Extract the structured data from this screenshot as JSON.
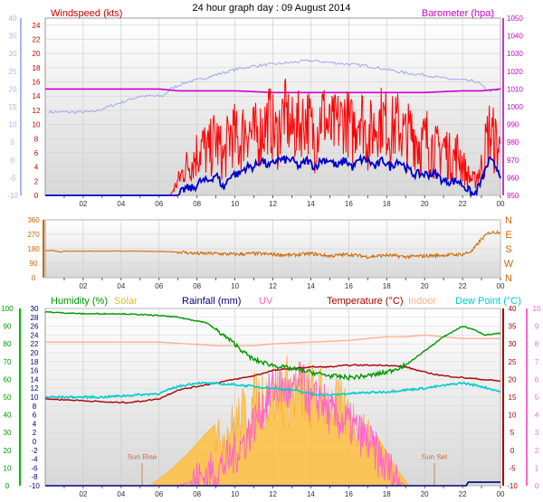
{
  "header": {
    "title": "24 hour graph day : 09 August 2014"
  },
  "colors": {
    "wind": "#ff0000",
    "gust_avg": "#0000cc",
    "windspeed_label": "#cc0000",
    "barometer": "#cc00cc",
    "barometer_axis": "#cc33cc",
    "left_axis_top": "#aab4ee",
    "direction": "#cc6600",
    "humidity": "#009900",
    "humidity_axis": "#00bb00",
    "solar": "#ffc040",
    "rainfall": "#000080",
    "uv": "#ff66cc",
    "temperature": "#aa0000",
    "indoor": "#ffb090",
    "dewpoint": "#00cccc",
    "panel_bg_top": "#ffffff",
    "panel_bg_bottom": "#d8d8d8"
  },
  "chart_data": [
    {
      "type": "line",
      "panel": "wind_barometer",
      "x_ticks": [
        "02",
        "04",
        "06",
        "08",
        "10",
        "12",
        "14",
        "16",
        "18",
        "20",
        "22",
        "00"
      ],
      "left_axis": {
        "label": "Windspeed (kts)",
        "ticks": [
          0,
          2,
          4,
          6,
          8,
          10,
          12,
          14,
          16,
          18,
          20,
          22,
          24
        ],
        "ylim": [
          0,
          25
        ]
      },
      "left_axis_outer": {
        "ticks": [
          -10,
          -5,
          0,
          5,
          10,
          15,
          20,
          25,
          30,
          35,
          40
        ],
        "ylim": [
          -10,
          40
        ]
      },
      "right_axis": {
        "label": "Barometer (hpa)",
        "ticks": [
          950,
          960,
          970,
          980,
          990,
          1000,
          1010,
          1020,
          1030,
          1040,
          1050
        ],
        "ylim": [
          950,
          1050
        ]
      },
      "series": [
        {
          "key": "outer",
          "axis": "left_outer",
          "x": [
            0.2,
            2.5,
            5.0,
            6.2,
            6.6,
            7.0,
            7.5,
            8.0,
            9.0,
            10.0,
            11.0,
            12.0,
            13.0,
            14.0,
            15.0,
            16.0,
            17.0,
            18.0,
            19.0,
            20.0,
            21.0,
            22.0,
            22.8,
            23.2,
            23.5,
            23.9
          ],
          "values": [
            13.5,
            13.5,
            18.0,
            18.0,
            20.0,
            21.0,
            22.0,
            22.5,
            24.0,
            25.5,
            26.5,
            27.0,
            27.5,
            28.0,
            27.5,
            27.0,
            26.5,
            25.5,
            24.5,
            24.0,
            23.0,
            22.5,
            22.0,
            20.0,
            19.5,
            19.5
          ]
        },
        {
          "key": "barometer",
          "axis": "right",
          "x": [
            0,
            4,
            6,
            7,
            8,
            10,
            12,
            14,
            16,
            18,
            20,
            22,
            23,
            24
          ],
          "values": [
            1010,
            1010,
            1010,
            1009,
            1009,
            1009,
            1008,
            1008,
            1008,
            1008,
            1008,
            1009,
            1009,
            1010
          ]
        },
        {
          "key": "wind",
          "axis": "left",
          "x": [
            0,
            6.6,
            7.0,
            7.4,
            7.8,
            8.2,
            8.6,
            9.0,
            9.4,
            9.8,
            10.2,
            10.6,
            11.0,
            11.4,
            11.8,
            12.2,
            12.6,
            13.0,
            13.4,
            13.8,
            14.2,
            14.6,
            15.0,
            15.4,
            15.8,
            16.2,
            16.6,
            17.0,
            17.4,
            17.8,
            18.2,
            18.6,
            19.0,
            19.4,
            19.8,
            20.2,
            20.6,
            21.0,
            21.4,
            21.8,
            22.2,
            22.6,
            23.0,
            23.4,
            23.8,
            24.0
          ],
          "values": [
            0,
            0,
            2,
            4,
            5,
            7,
            6,
            8,
            5,
            9,
            7,
            10,
            8,
            9,
            11,
            8,
            12,
            9,
            10,
            11,
            8,
            12,
            9,
            10,
            11,
            9,
            12,
            8,
            10,
            11,
            9,
            10,
            8,
            9,
            7,
            8,
            6,
            7,
            5,
            6,
            3,
            2,
            4,
            9,
            7,
            6
          ]
        },
        {
          "key": "gust_avg",
          "axis": "left",
          "x": [
            0,
            6.6,
            7.0,
            7.4,
            7.8,
            8.2,
            8.6,
            9.0,
            9.4,
            9.8,
            10.2,
            10.6,
            11.0,
            11.4,
            11.8,
            12.2,
            12.6,
            13.0,
            13.4,
            13.8,
            14.2,
            14.6,
            15.0,
            15.4,
            15.8,
            16.2,
            16.6,
            17.0,
            17.4,
            17.8,
            18.2,
            18.6,
            19.0,
            19.4,
            19.8,
            20.2,
            20.6,
            21.0,
            21.4,
            21.8,
            22.2,
            22.6,
            23.0,
            23.4,
            23.8,
            24.0
          ],
          "values": [
            0,
            0,
            0,
            1,
            1,
            2,
            2,
            3,
            1,
            3,
            3,
            4,
            4,
            5,
            4,
            5,
            5,
            5,
            4,
            5,
            4,
            5,
            5,
            4,
            5,
            4,
            5,
            5,
            4,
            5,
            4,
            5,
            4,
            3,
            3,
            3,
            3,
            2,
            2,
            2,
            1,
            0,
            2,
            5,
            4,
            3
          ]
        }
      ]
    },
    {
      "type": "line",
      "panel": "wind_direction",
      "x_ticks": [
        "02",
        "04",
        "06",
        "08",
        "10",
        "12",
        "14",
        "16",
        "18",
        "20",
        "22",
        "00"
      ],
      "left_axis": {
        "ticks": [
          0,
          90,
          180,
          270,
          360
        ],
        "ylim": [
          0,
          360
        ]
      },
      "right_axis": {
        "ticks": [
          "N",
          "W",
          "S",
          "E",
          "N"
        ]
      },
      "series": [
        {
          "key": "direction",
          "x": [
            0,
            0.3,
            0.8,
            1.0,
            3.0,
            5.0,
            7.0,
            8.0,
            9.0,
            10.0,
            11.0,
            12.0,
            13.0,
            14.0,
            15.0,
            16.0,
            17.0,
            18.0,
            19.0,
            20.0,
            21.0,
            22.0,
            22.5,
            23.0,
            23.4,
            24.0
          ],
          "values": [
            165,
            170,
            160,
            165,
            165,
            165,
            160,
            150,
            150,
            145,
            150,
            145,
            140,
            150,
            135,
            145,
            130,
            140,
            130,
            135,
            140,
            145,
            165,
            240,
            280,
            285
          ]
        }
      ]
    },
    {
      "type": "line",
      "panel": "temperature_humidity_solar",
      "x_ticks": [
        "02",
        "04",
        "06",
        "08",
        "10",
        "12",
        "14",
        "16",
        "18",
        "20",
        "22",
        "00"
      ],
      "legend": [
        "Humidity (%)",
        "Solar",
        "Rainfall (mm)",
        "UV",
        "Temperature (°C)",
        "Indoor",
        "Dew Point (°C)"
      ],
      "annotations": [
        "Sun Rise",
        "Sun Set"
      ],
      "left_axis": {
        "ticks": [
          0,
          10,
          20,
          30,
          40,
          50,
          60,
          70,
          80,
          90,
          100
        ],
        "ylim": [
          0,
          100
        ]
      },
      "left_axis_inner": {
        "ticks": [
          -10,
          -8,
          -6,
          -4,
          -2,
          0,
          2,
          4,
          6,
          8,
          10,
          12,
          14,
          16,
          18,
          20,
          22,
          24,
          26,
          28,
          30
        ],
        "ylim": [
          -10,
          30
        ]
      },
      "right_axis_inner": {
        "ticks": [
          -10,
          -5,
          0,
          5,
          10,
          15,
          20,
          25,
          30,
          35,
          40
        ],
        "ylim": [
          -10,
          40
        ]
      },
      "right_axis_outer": {
        "ticks": [
          0,
          1,
          2,
          3,
          4,
          5,
          6,
          7,
          8,
          9,
          10
        ],
        "ylim": [
          0,
          10
        ]
      },
      "series": [
        {
          "key": "humidity",
          "axis": "left",
          "x": [
            0,
            2,
            4,
            6,
            7,
            8.5,
            9.0,
            9.5,
            10.0,
            10.5,
            11,
            12,
            13,
            14,
            15,
            16,
            17,
            18,
            19,
            20,
            21,
            22,
            22.6,
            23.2,
            24
          ],
          "values": [
            98,
            97,
            97,
            96,
            95,
            92,
            88,
            84,
            80,
            75,
            71,
            68,
            66,
            64,
            62,
            61,
            62,
            64,
            68,
            76,
            84,
            90,
            88,
            85,
            86
          ]
        },
        {
          "key": "temperature",
          "axis": "right_inner",
          "x": [
            0,
            2,
            3.5,
            4.5,
            6,
            7,
            8,
            9,
            10,
            11,
            12,
            13,
            14,
            15,
            16,
            17,
            18,
            19,
            20,
            21,
            22,
            23,
            24
          ],
          "values": [
            14.5,
            14,
            13.5,
            13.5,
            14.5,
            17,
            18,
            19,
            20,
            21,
            22.5,
            23,
            23.5,
            23.5,
            24,
            24,
            24,
            23.5,
            22,
            21,
            20.5,
            20,
            19.5
          ]
        },
        {
          "key": "indoor",
          "axis": "right_inner",
          "x": [
            0,
            6,
            7.5,
            9,
            11,
            12,
            14,
            16,
            18,
            19,
            20,
            21,
            22,
            24
          ],
          "values": [
            30.5,
            30.5,
            30,
            29.5,
            29.5,
            30,
            30.5,
            31,
            32,
            32,
            32.5,
            32,
            31.5,
            31.5
          ]
        },
        {
          "key": "dewpoint",
          "axis": "right_outer",
          "x": [
            0,
            3,
            6,
            7,
            8,
            10,
            12,
            13,
            14,
            15,
            16,
            18,
            20,
            22,
            23,
            24
          ],
          "values": [
            5.0,
            5.0,
            5.2,
            5.6,
            5.8,
            5.7,
            5.5,
            5.4,
            5.2,
            5.1,
            5.2,
            5.3,
            5.5,
            5.8,
            5.6,
            5.3
          ]
        },
        {
          "key": "uv",
          "axis": "right_outer",
          "x": [
            7,
            8,
            9,
            10,
            10.5,
            11,
            11.5,
            12,
            12.5,
            13,
            13.5,
            14,
            14.5,
            15,
            16,
            17,
            18,
            18.6,
            19
          ],
          "values": [
            0,
            0.3,
            0.8,
            1.8,
            2.5,
            3.5,
            4.5,
            5.5,
            5.5,
            5,
            6,
            4.5,
            5,
            4,
            3.5,
            2.5,
            1,
            0.3,
            0
          ]
        },
        {
          "key": "solar",
          "axis": "left",
          "x": [
            5.5,
            6.5,
            7.5,
            8.5,
            9.5,
            10.5,
            11.5,
            12.5,
            13.5,
            14.5,
            15.5,
            16.5,
            17.5,
            18.5,
            19.2
          ],
          "values": [
            0,
            8,
            18,
            30,
            40,
            55,
            68,
            72,
            70,
            66,
            58,
            46,
            28,
            10,
            0
          ]
        },
        {
          "key": "rainfall",
          "axis": "left",
          "x": [
            0,
            22.2,
            22.3,
            24
          ],
          "values": [
            0,
            0,
            2,
            2
          ]
        }
      ]
    }
  ]
}
